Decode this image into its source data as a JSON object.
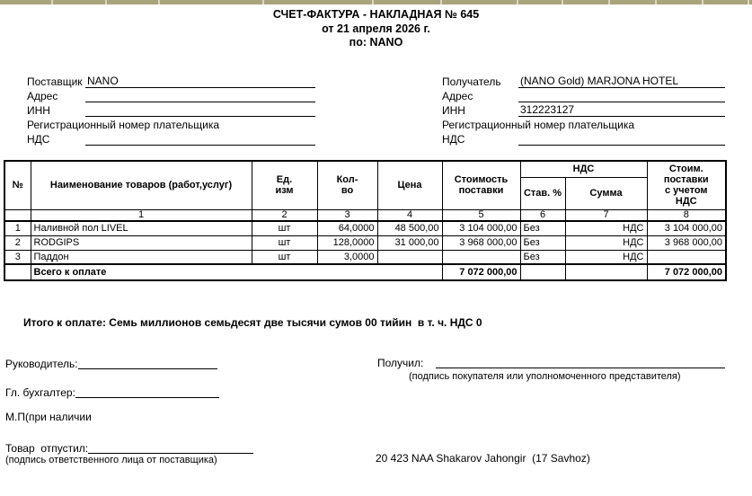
{
  "header": {
    "title": "СЧЕТ-ФАКТУРА - НАКЛАДНАЯ № 645",
    "date_line": "от 21 апреля 2026 г.",
    "by_line": "по: NANO"
  },
  "supplier": {
    "label": "Поставщик",
    "name": "NANO",
    "address_label": "Адрес",
    "address": "",
    "inn_label": "ИНН",
    "inn": "",
    "reg_label": "Регистрационный номер плательщика",
    "vat_label": "НДС",
    "vat": ""
  },
  "receiver": {
    "label": "Получатель",
    "name": "(NANO Gold) MARJONA HOTEL",
    "address_label": "Адрес",
    "address": "",
    "inn_label": "ИНН",
    "inn": "312223127",
    "reg_label": "Регистрационный номер плательщика",
    "vat_label": "НДС",
    "vat": ""
  },
  "table": {
    "headers": {
      "no": "№",
      "name": "Наименование товаров (работ,услуг)",
      "unit": "Ед.\nизм",
      "qty": "Кол-\nво",
      "price": "Цена",
      "amount": "Стоимость\nпоставки",
      "vat_group": "НДС",
      "vat_rate": "Став. %",
      "vat_sum": "Сумма",
      "total": "Стоим.\nпоставки\nс учетом\nНДС"
    },
    "col_numbers": [
      "1",
      "2",
      "3",
      "4",
      "5",
      "6",
      "7",
      "8"
    ],
    "rows": [
      {
        "no": "1",
        "name": "Наливной пол LIVEL",
        "unit": "шт",
        "qty": "64,0000",
        "price": "48 500,00",
        "amount": "3 104 000,00",
        "vat_rate": "Без",
        "vat_sum": "НДС",
        "total": "3 104 000,00"
      },
      {
        "no": "2",
        "name": "RODGIPS",
        "unit": "шт",
        "qty": "128,0000",
        "price": "31 000,00",
        "amount": "3 968 000,00",
        "vat_rate": "Без",
        "vat_sum": "НДС",
        "total": "3 968 000,00"
      },
      {
        "no": "3",
        "name": "Паддон",
        "unit": "шт",
        "qty": "3,0000",
        "price": "",
        "amount": "",
        "vat_rate": "Без",
        "vat_sum": "НДС",
        "total": ""
      }
    ],
    "total_row": {
      "label": "Всего к оплате",
      "amount": "7 072 000,00",
      "total": "7 072 000,00"
    }
  },
  "summary_line": "Итого к оплате: Семь миллионов семьдесят две тысячи сумов 00 тийин  в т. ч. НДС 0",
  "signatures": {
    "director_label": "Руководитель:",
    "accountant_label": "Гл. бухгалтер:",
    "stamp_note": "М.П(при наличии",
    "released_label": "Товар  отпустил:",
    "released_note": "(подпись ответственного лица от поставщика)",
    "received_label": "Получил:",
    "received_note": "(подпись покупателя или уполномоченного представителя)"
  },
  "footer_note": "20 423 NAA Shakarov Jahongir  (17 Savhoz)"
}
